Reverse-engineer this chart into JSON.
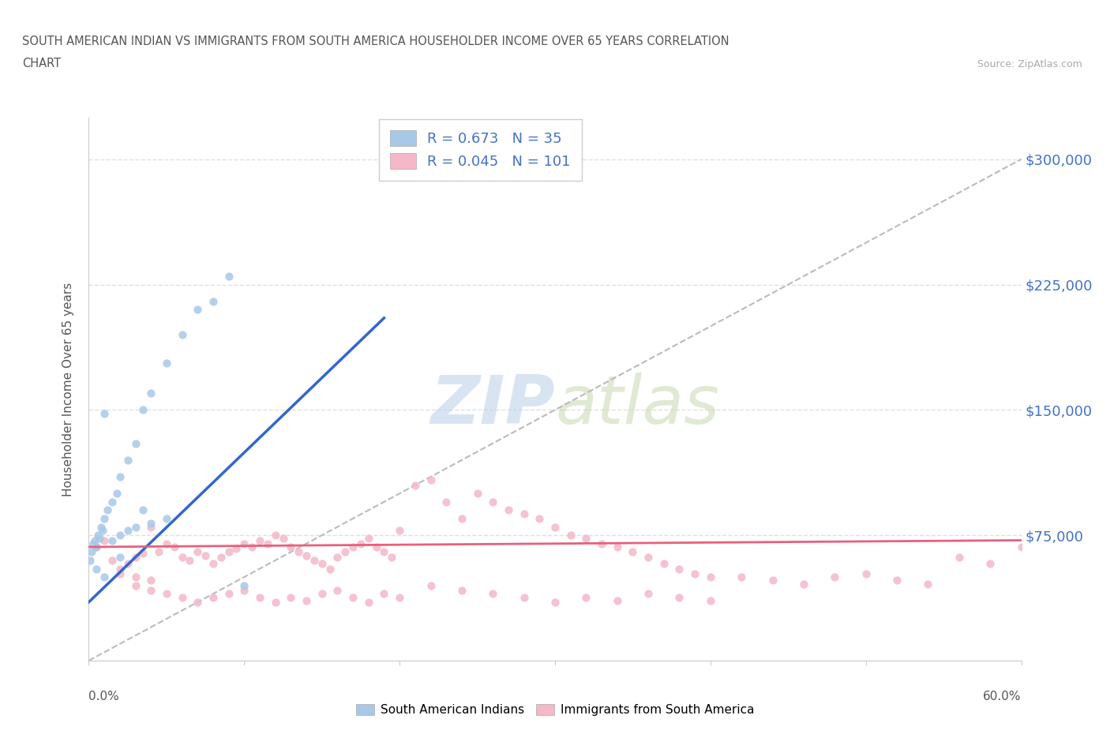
{
  "title_line1": "SOUTH AMERICAN INDIAN VS IMMIGRANTS FROM SOUTH AMERICA HOUSEHOLDER INCOME OVER 65 YEARS CORRELATION",
  "title_line2": "CHART",
  "source_text": "Source: ZipAtlas.com",
  "ylabel": "Householder Income Over 65 years",
  "watermark": "ZIPatlas",
  "legend_blue_r": "R = 0.673",
  "legend_blue_n": "N = 35",
  "legend_pink_r": "R = 0.045",
  "legend_pink_n": "N = 101",
  "blue_color": "#a8c8e8",
  "pink_color": "#f4b8c8",
  "blue_line_color": "#3366cc",
  "pink_line_color": "#e8607a",
  "blue_scatter_x": [
    0.1,
    0.2,
    0.3,
    0.4,
    0.5,
    0.6,
    0.7,
    0.8,
    0.9,
    1.0,
    1.2,
    1.5,
    1.8,
    2.0,
    2.5,
    3.0,
    3.5,
    4.0,
    5.0,
    6.0,
    7.0,
    8.0,
    9.0,
    1.0,
    2.0,
    3.0,
    4.0,
    5.0,
    0.5,
    1.5,
    2.5,
    3.5,
    1.0,
    2.0,
    10.0
  ],
  "blue_scatter_y": [
    60000,
    65000,
    70000,
    72000,
    68000,
    75000,
    73000,
    80000,
    78000,
    85000,
    90000,
    95000,
    100000,
    110000,
    120000,
    130000,
    150000,
    160000,
    178000,
    195000,
    210000,
    215000,
    230000,
    148000,
    75000,
    80000,
    82000,
    85000,
    55000,
    72000,
    78000,
    90000,
    50000,
    62000,
    45000
  ],
  "pink_scatter_x": [
    0.5,
    1.0,
    1.5,
    2.0,
    2.5,
    3.0,
    3.5,
    4.0,
    4.5,
    5.0,
    5.5,
    6.0,
    6.5,
    7.0,
    7.5,
    8.0,
    8.5,
    9.0,
    9.5,
    10.0,
    10.5,
    11.0,
    11.5,
    12.0,
    12.5,
    13.0,
    13.5,
    14.0,
    14.5,
    15.0,
    15.5,
    16.0,
    16.5,
    17.0,
    17.5,
    18.0,
    18.5,
    19.0,
    19.5,
    20.0,
    21.0,
    22.0,
    23.0,
    24.0,
    25.0,
    26.0,
    27.0,
    28.0,
    29.0,
    30.0,
    31.0,
    32.0,
    33.0,
    34.0,
    35.0,
    36.0,
    37.0,
    38.0,
    39.0,
    40.0,
    42.0,
    44.0,
    46.0,
    48.0,
    50.0,
    52.0,
    54.0,
    56.0,
    58.0,
    60.0,
    3.0,
    4.0,
    5.0,
    6.0,
    7.0,
    8.0,
    9.0,
    10.0,
    11.0,
    12.0,
    13.0,
    14.0,
    15.0,
    16.0,
    17.0,
    18.0,
    19.0,
    20.0,
    22.0,
    24.0,
    26.0,
    28.0,
    30.0,
    32.0,
    34.0,
    36.0,
    38.0,
    40.0,
    2.0,
    3.0,
    4.0
  ],
  "pink_scatter_y": [
    68000,
    72000,
    60000,
    55000,
    58000,
    62000,
    64000,
    80000,
    65000,
    70000,
    68000,
    62000,
    60000,
    65000,
    63000,
    58000,
    62000,
    65000,
    67000,
    70000,
    68000,
    72000,
    70000,
    75000,
    73000,
    68000,
    65000,
    63000,
    60000,
    58000,
    55000,
    62000,
    65000,
    68000,
    70000,
    73000,
    68000,
    65000,
    62000,
    78000,
    105000,
    108000,
    95000,
    85000,
    100000,
    95000,
    90000,
    88000,
    85000,
    80000,
    75000,
    73000,
    70000,
    68000,
    65000,
    62000,
    58000,
    55000,
    52000,
    50000,
    50000,
    48000,
    46000,
    50000,
    52000,
    48000,
    46000,
    62000,
    58000,
    68000,
    45000,
    42000,
    40000,
    38000,
    35000,
    38000,
    40000,
    42000,
    38000,
    35000,
    38000,
    36000,
    40000,
    42000,
    38000,
    35000,
    40000,
    38000,
    45000,
    42000,
    40000,
    38000,
    35000,
    38000,
    36000,
    40000,
    38000,
    36000,
    52000,
    50000,
    48000
  ],
  "xlim": [
    0,
    60
  ],
  "ylim": [
    0,
    325000
  ],
  "yticks": [
    0,
    75000,
    150000,
    225000,
    300000
  ],
  "ytick_labels": [
    "",
    "$75,000",
    "$150,000",
    "$225,000",
    "$300,000"
  ],
  "xtick_positions": [
    0,
    10,
    20,
    30,
    40,
    50,
    60
  ],
  "background_color": "#ffffff",
  "plot_bg_color": "#ffffff",
  "grid_color": "#e0e0e0",
  "title_color": "#555555",
  "source_color": "#aaaaaa",
  "blue_line_x": [
    0,
    19
  ],
  "blue_line_y": [
    35000,
    205000
  ],
  "pink_line_x": [
    0,
    60
  ],
  "pink_line_y": [
    68000,
    72000
  ]
}
